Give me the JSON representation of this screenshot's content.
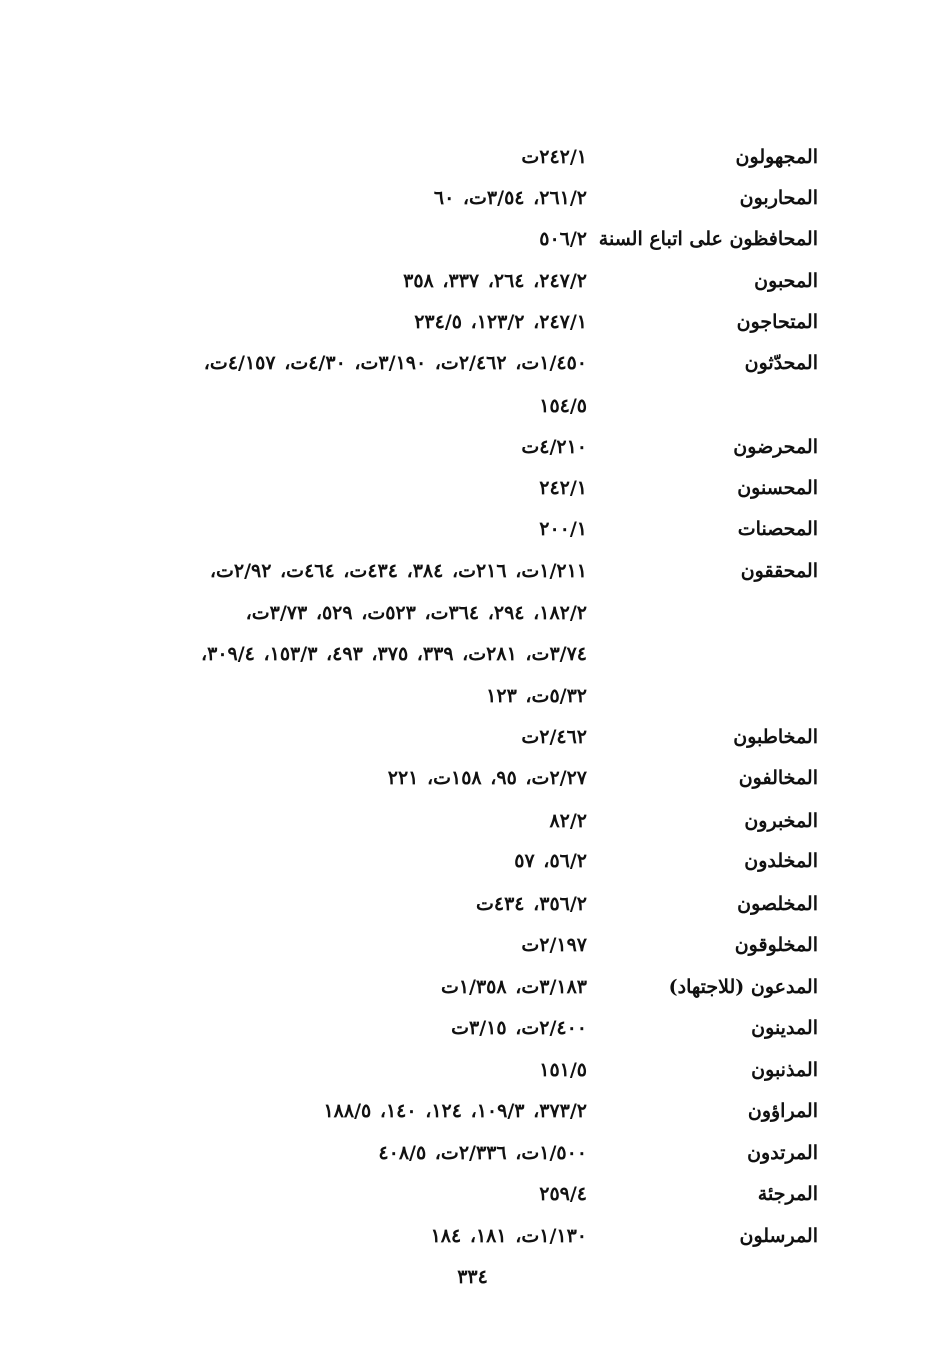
{
  "entries": [
    {
      "head": "المجهولون",
      "refs": "٢٤٢/١ت"
    },
    {
      "head": "المحاربون",
      "refs": "٢٦١/٢، ٣/٥٤ت، ٦٠"
    },
    {
      "head": "المحافظون على اتباع السنة",
      "refs": "٥٠٦/٢"
    },
    {
      "head": "المحبون",
      "refs": "٢٤٧/٢، ٢٦٤، ٣٣٧، ٣٥٨"
    },
    {
      "head": "المتحاجون",
      "refs": "٢٤٧/١، ١٢٣/٢، ٢٣٤/٥"
    },
    {
      "head": "المحدّثون",
      "refs": "١/٤٥٠ت، ٢/٤٦٢ت، ٣/١٩٠ت، ٤/٣٠ت، ٤/١٥٧ت،"
    },
    {
      "head": "",
      "refs": "١٥٤/٥"
    },
    {
      "head": "المحرضون",
      "refs": "٤/٢١٠ت"
    },
    {
      "head": "المحسنون",
      "refs": "٢٤٢/١"
    },
    {
      "head": "المحصنات",
      "refs": "٢٠٠/١"
    },
    {
      "head": "المحققون",
      "refs": "١/٢١١ت، ٢١٦ت، ٣٨٤، ٤٣٤ت، ٤٦٤ت، ٢/٩٢ت،"
    },
    {
      "head": "",
      "refs": "١٨٢/٢، ٢٩٤، ٣٦٤ت، ٥٢٣ت، ٥٢٩، ٣/٧٣ت،"
    },
    {
      "head": "",
      "refs": "٣/٧٤ت، ٢٨١ت، ٣٣٩، ٣٧٥، ٤٩٣، ١٥٣/٣، ٣٠٩/٤،"
    },
    {
      "head": "",
      "refs": "٥/٣٢ت، ١٢٣"
    },
    {
      "head": "المخاطبون",
      "refs": "٢/٤٦٢ت"
    },
    {
      "head": "المخالفون",
      "refs": "٢/٢٧ت، ٩٥، ١٥٨ت، ٢٢١"
    },
    {
      "head": "المخبرون",
      "refs": "٨٢/٢"
    },
    {
      "head": "المخلدون",
      "refs": "٥٦/٢، ٥٧"
    },
    {
      "head": "المخلصون",
      "refs": "٣٥٦/٢، ٤٣٤ت"
    },
    {
      "head": "المخلوقون",
      "refs": "٢/١٩٧ت"
    },
    {
      "head": "المدعون (للاجتهاد)",
      "refs": "٣/١٨٣ت، ١/٣٥٨ت"
    },
    {
      "head": "المدينون",
      "refs": "٢/٤٠٠ت، ٣/١٥ت"
    },
    {
      "head": "المذنبون",
      "refs": "١٥١/٥"
    },
    {
      "head": "المراؤون",
      "refs": "٣٧٣/٢، ١٠٩/٣، ١٢٤، ١٤٠، ١٨٨/٥"
    },
    {
      "head": "المرتدون",
      "refs": "١/٥٠٠ت، ٢/٣٣٦ت، ٤٠٨/٥"
    },
    {
      "head": "المرجئة",
      "refs": "٢٥٩/٤"
    },
    {
      "head": "المرسلون",
      "refs": "١/١٣٠ت، ١٨١، ١٨٤"
    }
  ],
  "page_number": "٣٣٤"
}
